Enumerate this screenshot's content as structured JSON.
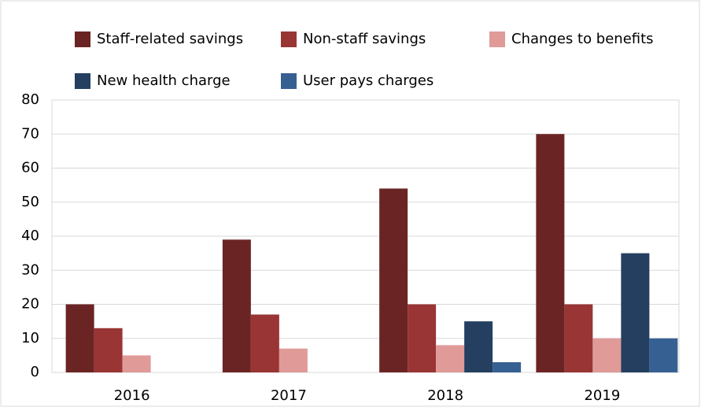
{
  "chart_data": {
    "type": "bar",
    "categories": [
      "2016",
      "2017",
      "2018",
      "2019"
    ],
    "series": [
      {
        "name": "Staff-related savings",
        "color": "#6b2424",
        "values": [
          20,
          39,
          54,
          70
        ]
      },
      {
        "name": "Non-staff savings",
        "color": "#993535",
        "values": [
          13,
          17,
          20,
          20
        ]
      },
      {
        "name": "Changes to benefits",
        "color": "#e09a98",
        "values": [
          5,
          7,
          8,
          10
        ]
      },
      {
        "name": "New health charge",
        "color": "#243f60",
        "values": [
          0,
          0,
          15,
          35
        ]
      },
      {
        "name": "User pays charges",
        "color": "#376092",
        "values": [
          0,
          0,
          3,
          10
        ]
      }
    ],
    "ylim": [
      0,
      80
    ],
    "yticks": [
      0,
      10,
      20,
      30,
      40,
      50,
      60,
      70,
      80
    ],
    "grid": true
  }
}
